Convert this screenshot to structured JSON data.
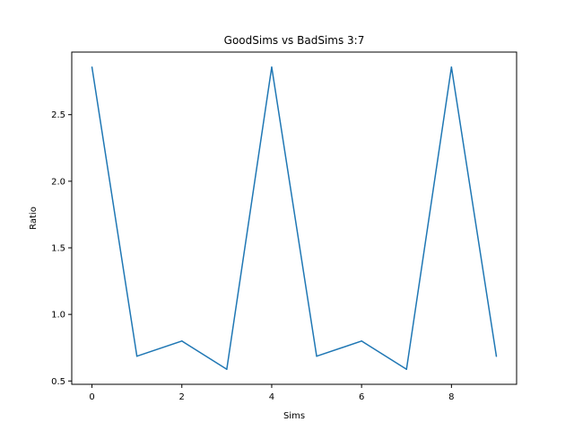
{
  "chart_data": {
    "type": "line",
    "title": "GoodSims vs BadSims 3:7",
    "xlabel": "Sims",
    "ylabel": "Ratio",
    "x": [
      0,
      1,
      2,
      3,
      4,
      5,
      6,
      7,
      8,
      9
    ],
    "series": [
      {
        "values": [
          2.857,
          0.686,
          0.8,
          0.588,
          2.857,
          0.686,
          0.8,
          0.588,
          2.857,
          0.686
        ]
      }
    ],
    "xlim": [
      -0.45,
      9.45
    ],
    "ylim": [
      0.475,
      2.97
    ],
    "xticks": [
      0,
      2,
      4,
      6,
      8
    ],
    "xtick_labels": [
      "0",
      "2",
      "4",
      "6",
      "8"
    ],
    "yticks": [
      0.5,
      1.0,
      1.5,
      2.0,
      2.5
    ],
    "ytick_labels": [
      "0.5",
      "1.0",
      "1.5",
      "2.0",
      "2.5"
    ],
    "grid": false,
    "colors": {
      "line": "#1f77b4",
      "axes": "#000000",
      "background": "#ffffff"
    }
  }
}
